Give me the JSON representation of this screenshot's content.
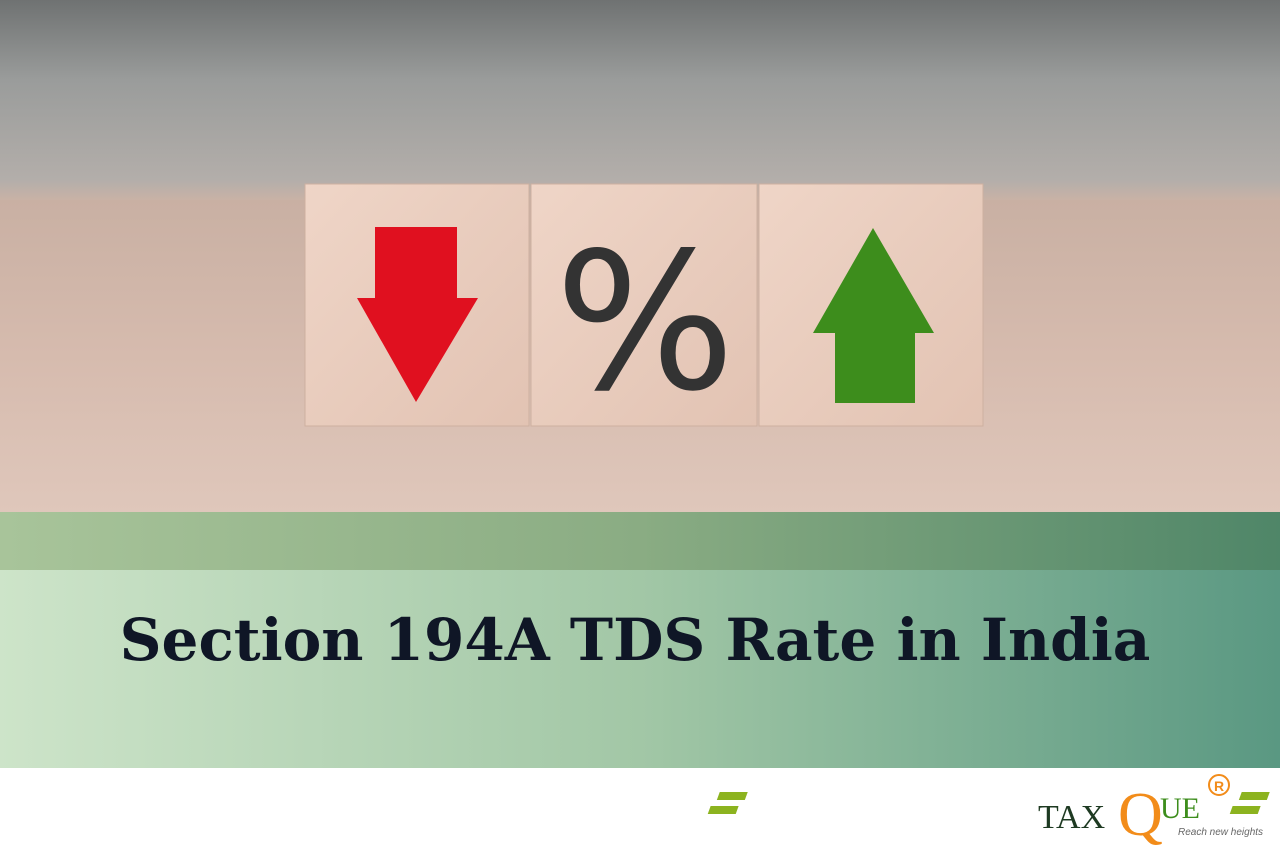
{
  "image": {
    "block_symbol": "%"
  },
  "banner": {
    "title": "Section 194A TDS Rate in India"
  },
  "logo": {
    "part1": "TAX",
    "part2": "Q",
    "part3": "UE",
    "registered": "R",
    "tagline": "Reach new heights"
  }
}
